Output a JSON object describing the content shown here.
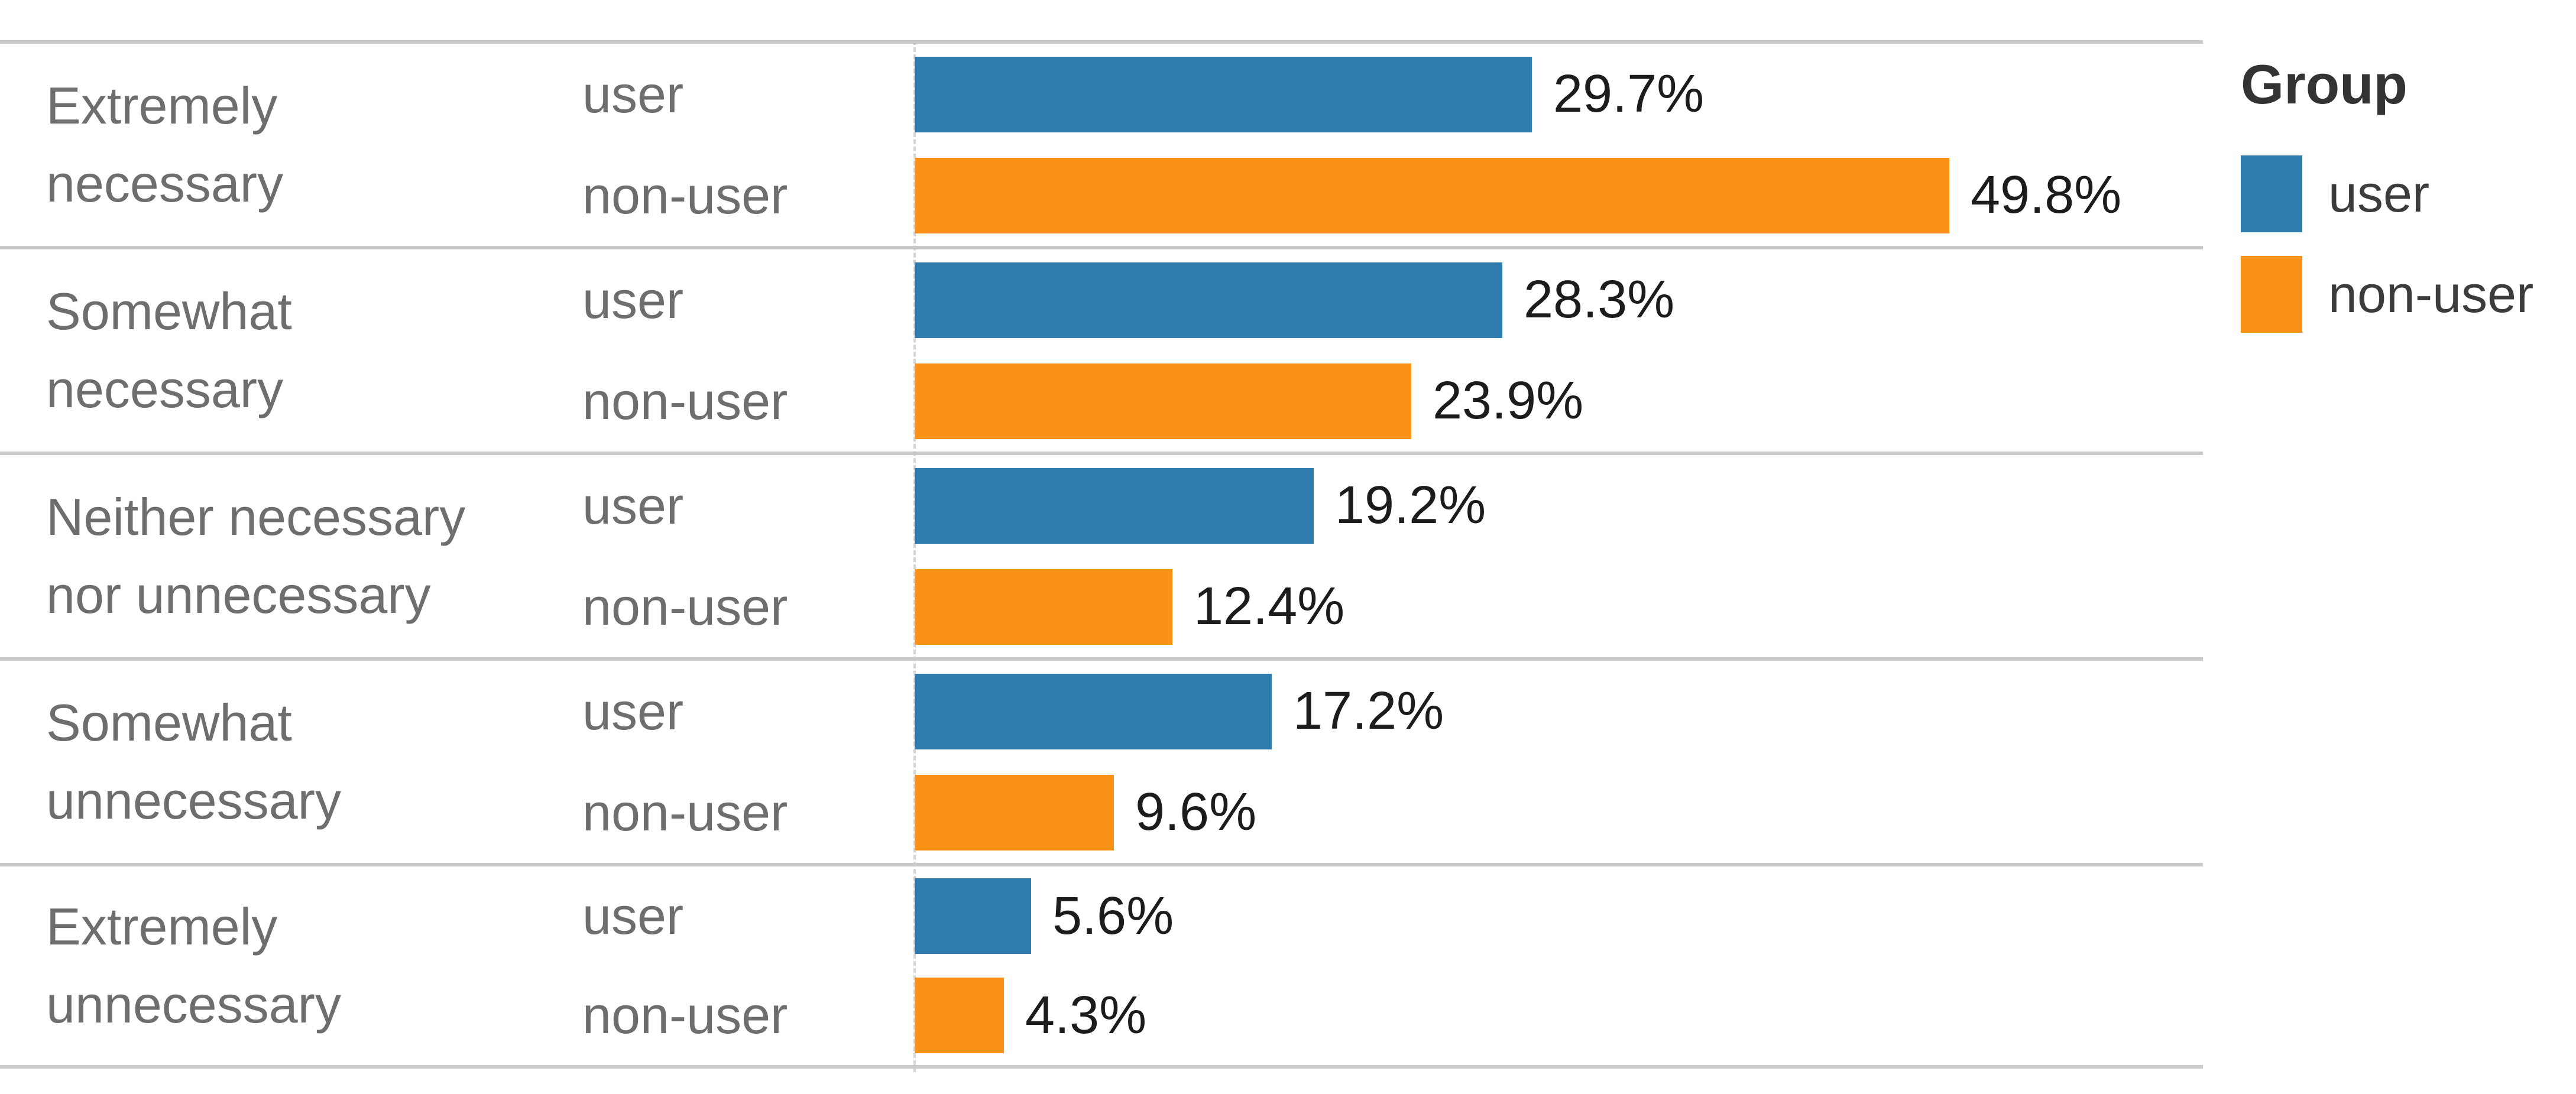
{
  "chart_data": {
    "type": "bar",
    "orientation": "horizontal",
    "categories": [
      "Extremely necessary",
      "Somewhat necessary",
      "Neither necessary nor unnecessary",
      "Somewhat unnecessary",
      "Extremely unnecessary"
    ],
    "category_lines": [
      [
        "Extremely",
        "necessary"
      ],
      [
        "Somewhat",
        "necessary"
      ],
      [
        "Neither necessary",
        "nor unnecessary"
      ],
      [
        "Somewhat",
        "unnecessary"
      ],
      [
        "Extremely",
        "unnecessary"
      ]
    ],
    "series": [
      {
        "name": "user",
        "color": "#2E7BAE",
        "values": [
          29.7,
          28.3,
          19.2,
          17.2,
          5.6
        ]
      },
      {
        "name": "non-user",
        "color": "#FB9218",
        "values": [
          49.8,
          23.9,
          12.4,
          9.6,
          4.3
        ]
      }
    ],
    "data_labels": [
      [
        "29.7%",
        "28.3%",
        "19.2%",
        "17.2%",
        "5.6%"
      ],
      [
        "49.8%",
        "23.9%",
        "12.4%",
        "9.6%",
        "4.3%"
      ]
    ],
    "value_suffix": "%",
    "xlim": [
      0,
      60.4
    ],
    "grid": "row-dividers-only",
    "legend": {
      "title": "Group",
      "position": "top-right",
      "entries": [
        "user",
        "non-user"
      ]
    }
  },
  "colors": {
    "user_bar": "#2E7BAE",
    "non_user_bar": "#FB9218",
    "divider": "#c9c9c9",
    "axis_dash": "#d4d4d4",
    "category_text": "#6e6e6e",
    "value_text": "#1c1c1c",
    "legend_title_text": "#333333",
    "legend_item_text": "#3c3c3c",
    "background": "#ffffff"
  }
}
